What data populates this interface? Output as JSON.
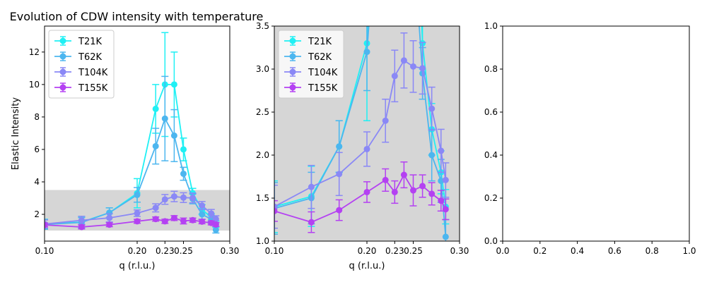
{
  "figure_title": "Evolution of CDW intensity with temperature",
  "chart_data": [
    {
      "type": "line",
      "title": "Evolution of CDW intensity with temperature",
      "xlabel": "q (r.l.u.)",
      "ylabel": "Elastic Intensity",
      "xlim": [
        0.1,
        0.3
      ],
      "ylim": [
        0.35,
        13.6
      ],
      "xticks": [
        0.1,
        0.2,
        0.23,
        0.25,
        0.3
      ],
      "xticklabels": [
        "0.10",
        "0.20",
        "0.23",
        "0.25",
        "0.30"
      ],
      "yticks": [
        2,
        4,
        6,
        8,
        10,
        12
      ],
      "yticklabels": [
        "2",
        "4",
        "6",
        "8",
        "10",
        "12"
      ],
      "shaded_band": {
        "y_from": 1.0,
        "y_to": 3.5,
        "color": "#d6d6d6"
      },
      "legend": {
        "position": "top-left",
        "entries": [
          "T21K",
          "T62K",
          "T104K",
          "T155K"
        ]
      }
    },
    {
      "type": "line",
      "title": "",
      "xlabel": "q (r.l.u.)",
      "ylabel": "",
      "xlim": [
        0.1,
        0.3
      ],
      "ylim": [
        1.0,
        3.5
      ],
      "xticks": [
        0.1,
        0.2,
        0.23,
        0.25,
        0.3
      ],
      "xticklabels": [
        "0.10",
        "0.20",
        "0.23",
        "0.25",
        "0.30"
      ],
      "yticks": [
        1.0,
        1.5,
        2.0,
        2.5,
        3.0,
        3.5
      ],
      "yticklabels": [
        "1.0",
        "1.5",
        "2.0",
        "2.5",
        "3.0",
        "3.5"
      ],
      "background": "#d6d6d6",
      "legend": {
        "position": "top-left",
        "entries": [
          "T21K",
          "T62K",
          "T104K",
          "T155K"
        ]
      }
    },
    {
      "type": "line",
      "title": "",
      "xlabel": "",
      "ylabel": "",
      "xlim": [
        0.0,
        1.0
      ],
      "ylim": [
        0.0,
        1.0
      ],
      "xticks": [
        0.0,
        0.2,
        0.4,
        0.6,
        0.8,
        1.0
      ],
      "xticklabels": [
        "0.0",
        "0.2",
        "0.4",
        "0.6",
        "0.8",
        "1.0"
      ],
      "yticks": [
        0.0,
        0.2,
        0.4,
        0.6,
        0.8,
        1.0
      ],
      "yticklabels": [
        "0.0",
        "0.2",
        "0.4",
        "0.6",
        "0.8",
        "1.0"
      ],
      "empty": true
    }
  ],
  "series": [
    {
      "name": "T21K",
      "color": "#1ff0f4",
      "x": [
        0.1,
        0.14,
        0.17,
        0.2,
        0.22,
        0.23,
        0.24,
        0.25,
        0.26,
        0.27,
        0.28,
        0.285
      ],
      "y": [
        1.4,
        1.52,
        2.1,
        3.3,
        8.5,
        10.0,
        10.0,
        6.0,
        3.3,
        2.3,
        1.8,
        1.4
      ],
      "err": [
        0.3,
        0.35,
        0.3,
        0.9,
        1.5,
        3.2,
        2.0,
        0.7,
        0.3,
        0.3,
        0.25,
        0.2
      ]
    },
    {
      "name": "T62K",
      "color": "#4cb6ef",
      "x": [
        0.1,
        0.14,
        0.17,
        0.2,
        0.22,
        0.23,
        0.24,
        0.25,
        0.26,
        0.27,
        0.28,
        0.285
      ],
      "y": [
        1.38,
        1.5,
        2.1,
        3.2,
        6.2,
        7.9,
        6.85,
        4.5,
        2.95,
        2.0,
        1.7,
        1.05
      ],
      "err": [
        0.3,
        0.3,
        0.3,
        0.45,
        1.1,
        2.6,
        1.6,
        0.4,
        0.3,
        0.3,
        0.25,
        0.2
      ]
    },
    {
      "name": "T104K",
      "color": "#8a88f6",
      "x": [
        0.1,
        0.14,
        0.17,
        0.2,
        0.22,
        0.23,
        0.24,
        0.25,
        0.26,
        0.27,
        0.28,
        0.285
      ],
      "y": [
        1.4,
        1.63,
        1.78,
        2.07,
        2.4,
        2.92,
        3.1,
        3.03,
        3.01,
        2.54,
        2.05,
        1.71
      ],
      "err": [
        0.25,
        0.25,
        0.25,
        0.2,
        0.25,
        0.3,
        0.32,
        0.3,
        0.3,
        0.25,
        0.25,
        0.2
      ]
    },
    {
      "name": "T155K",
      "color": "#b441f2",
      "x": [
        0.1,
        0.14,
        0.17,
        0.2,
        0.22,
        0.23,
        0.24,
        0.25,
        0.26,
        0.27,
        0.28,
        0.285
      ],
      "y": [
        1.35,
        1.22,
        1.36,
        1.57,
        1.71,
        1.57,
        1.77,
        1.59,
        1.64,
        1.55,
        1.47,
        1.37
      ],
      "err": [
        0.12,
        0.12,
        0.12,
        0.12,
        0.13,
        0.13,
        0.15,
        0.18,
        0.13,
        0.13,
        0.12,
        0.12
      ]
    }
  ]
}
